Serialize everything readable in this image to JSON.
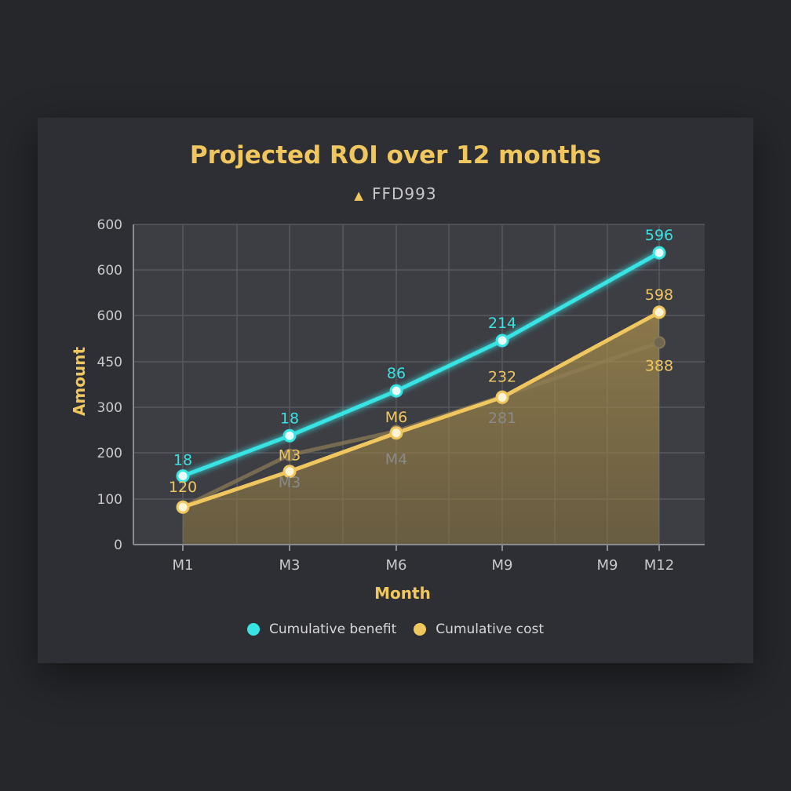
{
  "chart_data": {
    "type": "line",
    "title": "Projected ROI over 12 months",
    "subtitle": "FFD993",
    "xlabel": "Month",
    "ylabel": "Amount",
    "x_ticks": [
      "M1",
      "M3",
      "M6",
      "M9",
      "M9",
      "M12"
    ],
    "y_ticks": [
      "0",
      "100",
      "200",
      "300",
      "450",
      "600",
      "600",
      "600"
    ],
    "grid": true,
    "legend_position": "bottom",
    "colors": {
      "benefit": "#38e3e3",
      "cost": "#f0c75e",
      "ghost": "#8e7d55"
    },
    "series": [
      {
        "name": "Cumulative benefit",
        "points": [
          {
            "x": "M1",
            "y": 150,
            "label": "18"
          },
          {
            "x": "M3",
            "y": 238,
            "label": "18"
          },
          {
            "x": "M6",
            "y": 336,
            "label": "86"
          },
          {
            "x": "M9",
            "y": 446,
            "label": "214"
          },
          {
            "x": "M12",
            "y": 638,
            "label": "596"
          }
        ]
      },
      {
        "name": "Cumulative cost",
        "points": [
          {
            "x": "M1",
            "y": 82,
            "label": "120"
          },
          {
            "x": "M3",
            "y": 160,
            "label": "M3"
          },
          {
            "x": "M6",
            "y": 244,
            "label": "M6"
          },
          {
            "x": "M9",
            "y": 322,
            "label": "232"
          },
          {
            "x": "M12",
            "y": 508,
            "label": "598"
          }
        ]
      },
      {
        "points": [
          {
            "x": "M1",
            "y": 82,
            "label": ""
          },
          {
            "x": "M3",
            "y": 196,
            "label": "M3"
          },
          {
            "x": "M6",
            "y": 248,
            "label": "M4"
          },
          {
            "x": "M9",
            "y": 324,
            "label": "281"
          },
          {
            "x": "M12",
            "y": 442,
            "label": "388"
          }
        ]
      }
    ]
  }
}
